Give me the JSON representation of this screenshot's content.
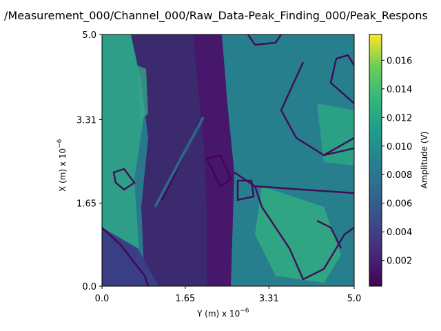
{
  "chart_data": {
    "type": "heatmap",
    "title": "/Measurement_000/Channel_000/Raw_Data-Peak_Finding_000/Peak_Respons",
    "xlabel": "Y (m) x 10",
    "xlabel_exp": "−6",
    "ylabel": "X (m) x 10",
    "ylabel_exp": "−6",
    "xlim": [
      0.0,
      5.0
    ],
    "ylim": [
      0.0,
      5.0
    ],
    "x_ticks": [
      0.0,
      1.65,
      3.31,
      5.0
    ],
    "x_tick_labels": [
      "0.0",
      "1.65",
      "3.31",
      "5.0"
    ],
    "y_ticks": [
      0.0,
      1.65,
      3.31,
      5.0
    ],
    "y_tick_labels": [
      "0.0",
      "1.65",
      "3.31",
      "5.0"
    ],
    "colormap": "viridis",
    "colorbar": {
      "label": "Amplitude (V)",
      "range": [
        0.0002,
        0.0178
      ],
      "ticks": [
        0.002,
        0.004,
        0.006,
        0.008,
        0.01,
        0.012,
        0.014,
        0.016
      ],
      "tick_labels": [
        "0.002",
        "0.004",
        "0.006",
        "0.008",
        "0.010",
        "0.012",
        "0.014",
        "0.016"
      ]
    },
    "grid": false
  }
}
